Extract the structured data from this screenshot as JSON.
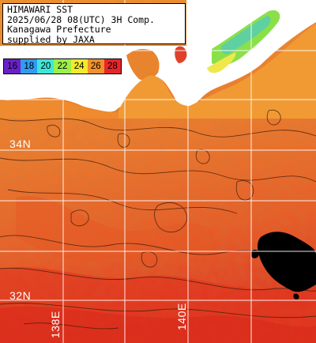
{
  "title_lines": [
    "HIMAWARI SST",
    "2025/06/28 08(UTC) 3H Comp.",
    "Kanagawa Prefecture",
    "supplied by JAXA"
  ],
  "colorbar": {
    "labels": [
      "16",
      "18",
      "20",
      "22",
      "24",
      "26",
      "28"
    ],
    "colors": [
      "#6a20c8",
      "#2f9cf2",
      "#3fe6d8",
      "#9cf04a",
      "#f2ea2a",
      "#f2902a",
      "#e8262a"
    ]
  },
  "grid_labels": {
    "lat_34": "34N",
    "lat_32": "32N",
    "lon_138": "138E",
    "lon_140": "140E"
  },
  "colors": {
    "sea_warm": "#e8702a",
    "sea_orange": "#f08a30",
    "sea_hot": "#e23a20",
    "land": "#ffffff",
    "cloud": "#000000",
    "gridline": "#ffffff"
  },
  "icons": {
    "land": "coastline-shape",
    "cloud_mask": "black-patch"
  }
}
